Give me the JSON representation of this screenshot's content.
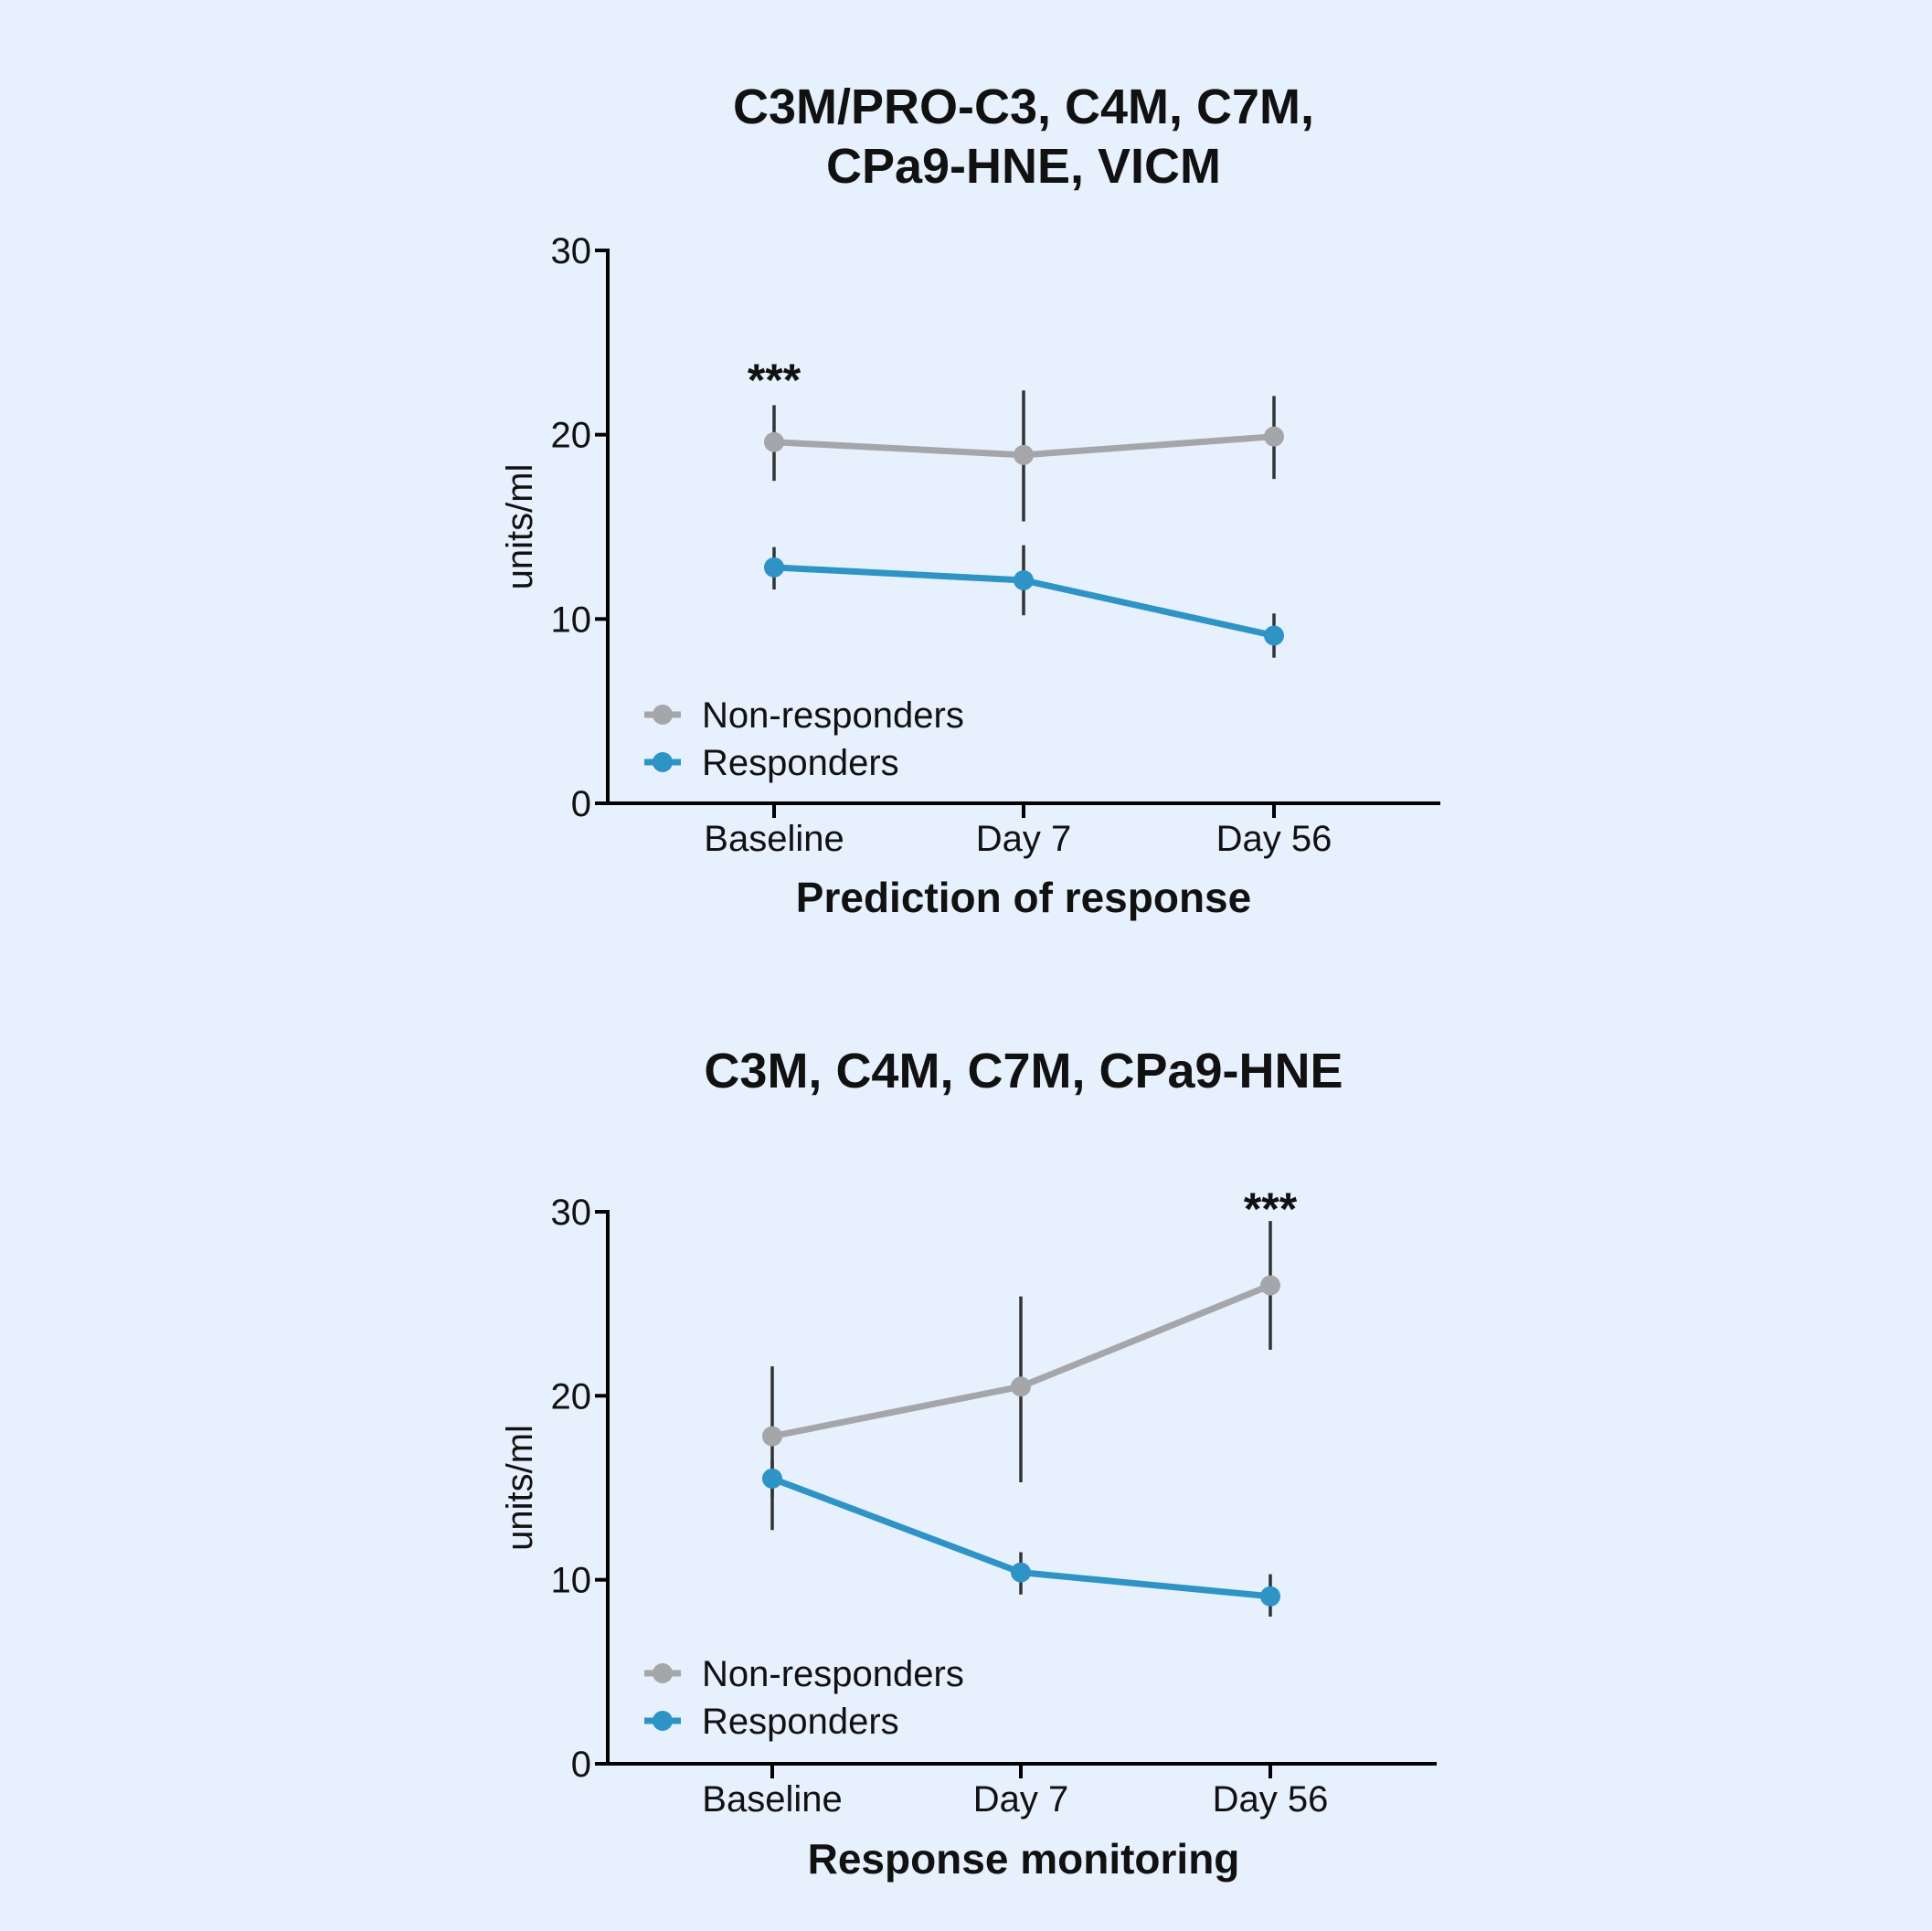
{
  "colors": {
    "background": "#e7f0fd",
    "non_responders": "#a4a6aa",
    "responders": "#2e93c5",
    "error_bar": "#333333",
    "axis": "#000000"
  },
  "chart_data": [
    {
      "type": "line",
      "title_lines": [
        "C3M/PRO-C3,  C4M,  C7M,",
        "CPa9-HNE,  VICM"
      ],
      "xlabel": "Prediction of response",
      "ylabel": "units/ml",
      "categories": [
        "Baseline",
        "Day 7",
        "Day 56"
      ],
      "ylim": [
        0,
        30
      ],
      "yticks": [
        "0",
        "10",
        "20",
        "30"
      ],
      "legend": {
        "placement": "bottom-left",
        "entries": [
          "Non-responders",
          "Responders"
        ]
      },
      "series": [
        {
          "name": "Non-responders",
          "values": [
            19.6,
            18.9,
            19.9
          ],
          "err_low": [
            17.5,
            15.3,
            17.6
          ],
          "err_high": [
            21.6,
            22.4,
            22.1
          ]
        },
        {
          "name": "Responders",
          "values": [
            12.8,
            12.1,
            9.1
          ],
          "err_low": [
            11.6,
            10.2,
            7.9
          ],
          "err_high": [
            13.9,
            14.0,
            10.3
          ]
        }
      ],
      "annotations": [
        {
          "text": "***",
          "category": "Baseline",
          "y": 23.5
        }
      ]
    },
    {
      "type": "line",
      "title_lines": [
        "C3M, C4M, C7M, CPa9-HNE"
      ],
      "xlabel": "Response monitoring",
      "ylabel": "units/ml",
      "categories": [
        "Baseline",
        "Day 7",
        "Day 56"
      ],
      "ylim": [
        0,
        30
      ],
      "yticks": [
        "0",
        "10",
        "20",
        "30"
      ],
      "legend": {
        "placement": "bottom-left",
        "entries": [
          "Non-responders",
          "Responders"
        ]
      },
      "series": [
        {
          "name": "Non-responders",
          "values": [
            17.8,
            20.5,
            26.0
          ],
          "err_low": [
            12.7,
            15.3,
            22.5
          ],
          "err_high": [
            21.6,
            25.4,
            29.5
          ]
        },
        {
          "name": "Responders",
          "values": [
            15.5,
            10.4,
            9.1
          ],
          "err_low": [
            14.5,
            9.2,
            8.0
          ],
          "err_high": [
            16.5,
            11.5,
            10.3
          ]
        }
      ],
      "annotations": [
        {
          "text": "***",
          "category": "Day 56",
          "y": 30.7
        }
      ]
    }
  ]
}
